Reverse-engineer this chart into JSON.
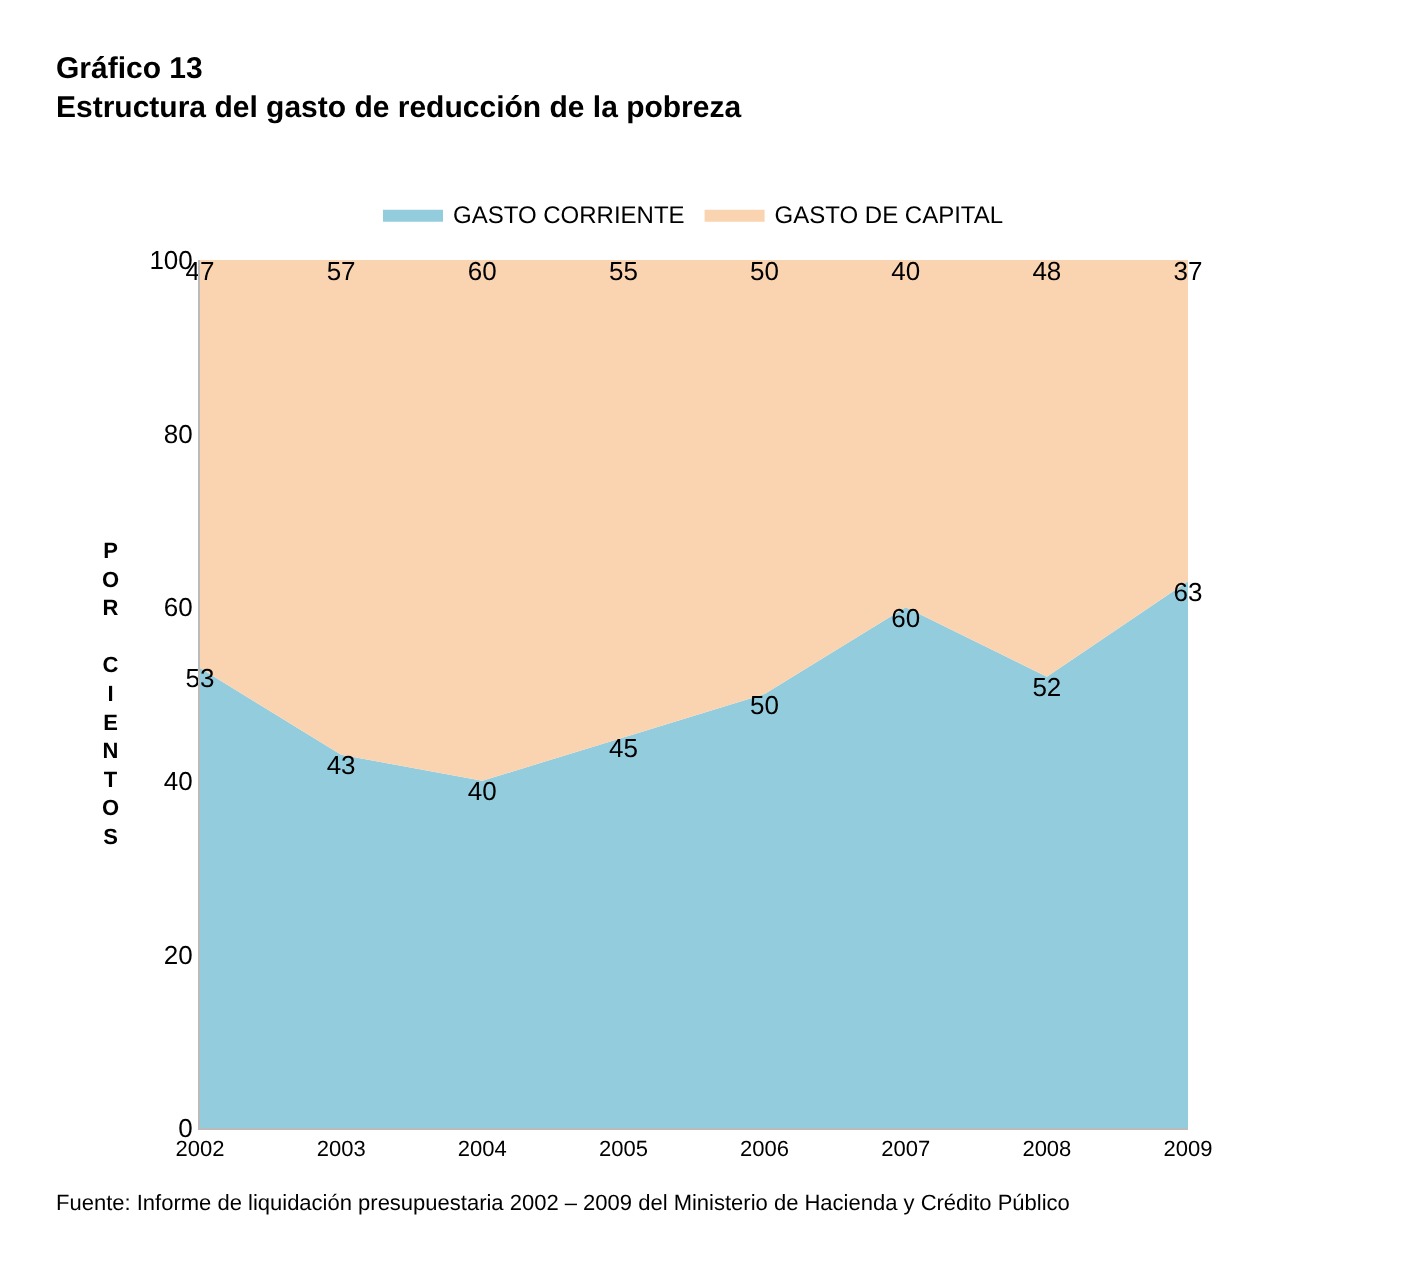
{
  "chart_data": {
    "type": "area",
    "stacked": true,
    "title": "Gráfico 13",
    "subtitle": "Estructura del gasto de reducción de la pobreza",
    "ylabel": "POR CIENTOS",
    "x": [
      2002,
      2003,
      2004,
      2005,
      2006,
      2007,
      2008,
      2009
    ],
    "xlim": [
      2002,
      2009
    ],
    "xticks": [
      2002,
      2003,
      2004,
      2005,
      2006,
      2007,
      2008,
      2009
    ],
    "ylim": [
      0,
      100
    ],
    "yticks": [
      0,
      20,
      40,
      60,
      80,
      100
    ],
    "series": [
      {
        "name": "GASTO CORRIENTE",
        "color": "#93cddd",
        "values": [
          53,
          43,
          40,
          45,
          50,
          60,
          52,
          63
        ]
      },
      {
        "name": "GASTO DE CAPITAL",
        "color": "#fad3b1",
        "values": [
          47,
          57,
          60,
          55,
          50,
          40,
          48,
          37
        ]
      }
    ],
    "data_labels": true,
    "legend": "top",
    "annotations": [
      "Fuente: Informe de liquidación presupuestaria 2002 – 2009 del Ministerio de Hacienda y Crédito Público"
    ]
  }
}
